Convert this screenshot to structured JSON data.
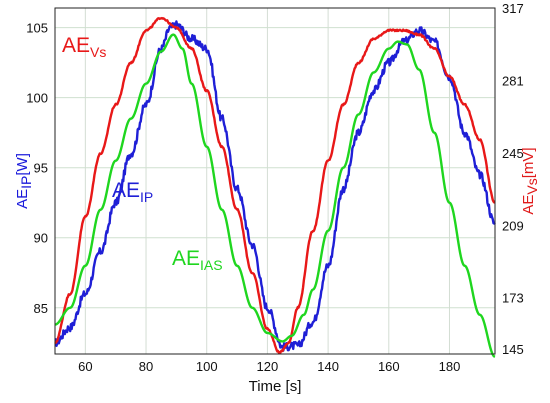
{
  "chart_data": {
    "type": "line",
    "xlabel": "Time [s]",
    "x_ticks": [
      60,
      80,
      100,
      120,
      140,
      160,
      180
    ],
    "xlim": [
      50,
      195
    ],
    "y_left": {
      "label_main": "AE",
      "label_sub": "IP",
      "label_unit": "[W]",
      "ticks": [
        85,
        90,
        95,
        100,
        105
      ],
      "lim": [
        81.7,
        106.4
      ],
      "color": "#1a1adb"
    },
    "y_right": {
      "label_main": "AE",
      "label_sub": "Vs",
      "label_unit": "[mV]",
      "ticks": [
        145,
        173,
        209,
        245,
        281,
        317
      ],
      "lim": [
        145,
        317
      ],
      "color": "#e01a1a"
    },
    "grid": true,
    "series": [
      {
        "name": "AE_IP",
        "display_main": "AE",
        "display_sub": "IP",
        "axis": "left",
        "color": "#1f1fd6",
        "jitter": 0.28,
        "x": [
          50,
          55,
          60,
          65,
          70,
          75,
          80,
          85,
          88,
          90,
          95,
          100,
          105,
          110,
          115,
          120,
          125,
          130,
          135,
          140,
          145,
          150,
          155,
          160,
          165,
          170,
          175,
          180,
          185,
          190,
          195
        ],
        "y": [
          82.5,
          83.6,
          86.0,
          89.0,
          92.5,
          96.0,
          99.5,
          103.5,
          105.0,
          105.2,
          104.2,
          103.5,
          98.5,
          93.5,
          89.5,
          85.0,
          82.2,
          82.3,
          84.0,
          88.0,
          93.5,
          97.5,
          100.5,
          102.5,
          104.0,
          104.8,
          104.0,
          101.5,
          97.5,
          94.5,
          91.0
        ]
      },
      {
        "name": "AE_Vs",
        "display_main": "AE",
        "display_sub": "Vs",
        "axis": "left",
        "color": "#e81818",
        "jitter": 0.06,
        "x": [
          50,
          55,
          60,
          65,
          70,
          75,
          80,
          85,
          90,
          95,
          100,
          105,
          110,
          115,
          120,
          124,
          127,
          130,
          135,
          140,
          145,
          150,
          155,
          160,
          165,
          170,
          175,
          180,
          185,
          190,
          195
        ],
        "y": [
          82.5,
          86.0,
          91.5,
          96.0,
          99.5,
          102.5,
          104.8,
          105.7,
          105.0,
          103.5,
          100.5,
          96.5,
          92.0,
          87.5,
          83.5,
          81.8,
          82.5,
          85.0,
          90.5,
          95.5,
          99.5,
          102.5,
          104.2,
          104.8,
          104.8,
          104.5,
          103.5,
          101.5,
          99.5,
          97.0,
          92.5
        ]
      },
      {
        "name": "AE_IAS",
        "display_main": "AE",
        "display_sub": "IAS",
        "axis": "left",
        "color": "#1fd61f",
        "jitter": 0,
        "x": [
          50,
          55,
          60,
          65,
          70,
          75,
          80,
          85,
          89,
          92,
          95,
          100,
          105,
          110,
          115,
          120,
          125,
          128,
          132,
          135,
          140,
          145,
          150,
          155,
          160,
          163,
          166,
          170,
          175,
          180,
          185,
          190,
          195
        ],
        "y": [
          83.8,
          85.0,
          88.0,
          92.0,
          95.5,
          98.5,
          101.0,
          103.3,
          104.5,
          103.5,
          101.0,
          96.5,
          92.0,
          88.0,
          85.0,
          83.2,
          82.6,
          83.0,
          84.5,
          86.3,
          90.5,
          95.0,
          98.8,
          101.8,
          103.5,
          104.0,
          103.8,
          102.0,
          97.5,
          92.5,
          88.0,
          84.5,
          81.5
        ]
      }
    ]
  }
}
